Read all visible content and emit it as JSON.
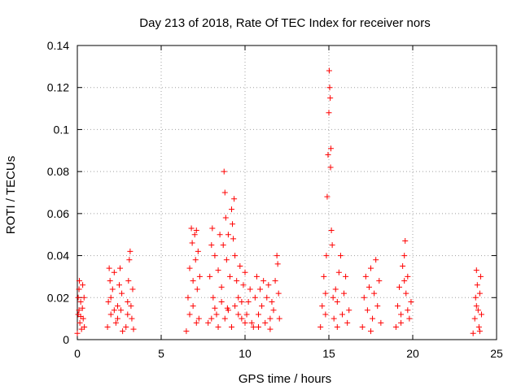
{
  "chart_data": {
    "type": "scatter",
    "title": "Day 213 of 2018, Rate Of TEC Index for receiver nors",
    "xlabel": "GPS time / hours",
    "ylabel": "ROTI / TECUs",
    "xlim": [
      0,
      25
    ],
    "ylim": [
      0,
      0.14
    ],
    "xticks": [
      0,
      5,
      10,
      15,
      20,
      25
    ],
    "xtick_labels": [
      "0",
      "5",
      "10",
      "15",
      "20",
      "25"
    ],
    "yticks": [
      0,
      0.02,
      0.04,
      0.06,
      0.08,
      0.1,
      0.12,
      0.14
    ],
    "ytick_labels": [
      "0",
      "0.02",
      "0.04",
      "0.06",
      "0.08",
      "0.1",
      "0.12",
      "0.14"
    ],
    "grid": true,
    "marker": "+",
    "series": [
      {
        "name": "ROTI",
        "color": "#ff0000",
        "points": [
          [
            0.0,
            0.003
          ],
          [
            0.05,
            0.012
          ],
          [
            0.1,
            0.024
          ],
          [
            0.12,
            0.028
          ],
          [
            0.15,
            0.008
          ],
          [
            0.2,
            0.018
          ],
          [
            0.25,
            0.005
          ],
          [
            0.3,
            0.015
          ],
          [
            0.32,
            0.026
          ],
          [
            0.35,
            0.01
          ],
          [
            0.4,
            0.02
          ],
          [
            0.42,
            0.006
          ],
          [
            0.1,
            0.014
          ],
          [
            0.2,
            0.011
          ],
          [
            0.05,
            0.02
          ],
          [
            1.8,
            0.006
          ],
          [
            1.85,
            0.018
          ],
          [
            1.9,
            0.034
          ],
          [
            1.95,
            0.028
          ],
          [
            2.0,
            0.012
          ],
          [
            2.1,
            0.024
          ],
          [
            2.2,
            0.032
          ],
          [
            2.3,
            0.008
          ],
          [
            2.4,
            0.016
          ],
          [
            2.5,
            0.026
          ],
          [
            2.55,
            0.034
          ],
          [
            2.6,
            0.014
          ],
          [
            2.65,
            0.022
          ],
          [
            2.7,
            0.004
          ],
          [
            2.0,
            0.02
          ],
          [
            2.2,
            0.014
          ],
          [
            2.4,
            0.01
          ],
          [
            2.9,
            0.006
          ],
          [
            3.0,
            0.018
          ],
          [
            3.05,
            0.028
          ],
          [
            3.1,
            0.038
          ],
          [
            3.15,
            0.042
          ],
          [
            3.2,
            0.016
          ],
          [
            3.25,
            0.01
          ],
          [
            3.3,
            0.024
          ],
          [
            3.35,
            0.005
          ],
          [
            3.0,
            0.012
          ],
          [
            6.5,
            0.004
          ],
          [
            6.6,
            0.02
          ],
          [
            6.7,
            0.034
          ],
          [
            6.8,
            0.053
          ],
          [
            6.85,
            0.046
          ],
          [
            6.9,
            0.028
          ],
          [
            7.0,
            0.05
          ],
          [
            7.05,
            0.038
          ],
          [
            7.1,
            0.052
          ],
          [
            7.15,
            0.024
          ],
          [
            7.2,
            0.042
          ],
          [
            7.25,
            0.01
          ],
          [
            7.3,
            0.03
          ],
          [
            6.7,
            0.012
          ],
          [
            6.9,
            0.016
          ],
          [
            7.1,
            0.008
          ],
          [
            7.8,
            0.008
          ],
          [
            7.9,
            0.03
          ],
          [
            8.0,
            0.045
          ],
          [
            8.05,
            0.053
          ],
          [
            8.1,
            0.02
          ],
          [
            8.2,
            0.04
          ],
          [
            8.3,
            0.012
          ],
          [
            8.4,
            0.033
          ],
          [
            8.5,
            0.05
          ],
          [
            8.6,
            0.025
          ],
          [
            8.7,
            0.045
          ],
          [
            8.75,
            0.08
          ],
          [
            8.8,
            0.07
          ],
          [
            8.85,
            0.058
          ],
          [
            8.9,
            0.038
          ],
          [
            8.95,
            0.015
          ],
          [
            9.0,
            0.05
          ],
          [
            9.1,
            0.03
          ],
          [
            9.2,
            0.062
          ],
          [
            9.25,
            0.055
          ],
          [
            9.3,
            0.048
          ],
          [
            9.35,
            0.067
          ],
          [
            9.4,
            0.04
          ],
          [
            9.5,
            0.028
          ],
          [
            9.6,
            0.02
          ],
          [
            9.7,
            0.035
          ],
          [
            9.8,
            0.01
          ],
          [
            9.9,
            0.026
          ],
          [
            10.0,
            0.032
          ],
          [
            10.1,
            0.012
          ],
          [
            10.2,
            0.018
          ],
          [
            10.3,
            0.024
          ],
          [
            10.4,
            0.008
          ],
          [
            8.0,
            0.01
          ],
          [
            8.2,
            0.015
          ],
          [
            8.4,
            0.006
          ],
          [
            8.6,
            0.018
          ],
          [
            8.8,
            0.01
          ],
          [
            9.0,
            0.014
          ],
          [
            9.2,
            0.006
          ],
          [
            9.4,
            0.016
          ],
          [
            9.6,
            0.012
          ],
          [
            9.8,
            0.018
          ],
          [
            10.0,
            0.008
          ],
          [
            10.5,
            0.006
          ],
          [
            10.6,
            0.02
          ],
          [
            10.7,
            0.03
          ],
          [
            10.8,
            0.012
          ],
          [
            10.9,
            0.024
          ],
          [
            11.0,
            0.016
          ],
          [
            11.1,
            0.028
          ],
          [
            11.2,
            0.008
          ],
          [
            11.3,
            0.02
          ],
          [
            11.4,
            0.026
          ],
          [
            11.5,
            0.01
          ],
          [
            11.6,
            0.018
          ],
          [
            11.7,
            0.014
          ],
          [
            11.8,
            0.028
          ],
          [
            11.9,
            0.04
          ],
          [
            11.95,
            0.036
          ],
          [
            12.0,
            0.022
          ],
          [
            12.05,
            0.01
          ],
          [
            10.8,
            0.006
          ],
          [
            11.5,
            0.005
          ],
          [
            14.5,
            0.006
          ],
          [
            14.6,
            0.016
          ],
          [
            14.7,
            0.03
          ],
          [
            14.8,
            0.022
          ],
          [
            14.85,
            0.04
          ],
          [
            14.9,
            0.068
          ],
          [
            14.95,
            0.088
          ],
          [
            15.0,
            0.108
          ],
          [
            15.02,
            0.128
          ],
          [
            15.05,
            0.12
          ],
          [
            15.08,
            0.115
          ],
          [
            15.1,
            0.082
          ],
          [
            15.12,
            0.091
          ],
          [
            15.15,
            0.052
          ],
          [
            15.2,
            0.045
          ],
          [
            15.25,
            0.02
          ],
          [
            15.3,
            0.01
          ],
          [
            15.4,
            0.024
          ],
          [
            15.5,
            0.018
          ],
          [
            15.6,
            0.032
          ],
          [
            15.7,
            0.04
          ],
          [
            15.8,
            0.012
          ],
          [
            15.9,
            0.022
          ],
          [
            16.0,
            0.03
          ],
          [
            16.1,
            0.008
          ],
          [
            16.2,
            0.014
          ],
          [
            14.8,
            0.012
          ],
          [
            15.5,
            0.006
          ],
          [
            17.0,
            0.006
          ],
          [
            17.1,
            0.02
          ],
          [
            17.2,
            0.03
          ],
          [
            17.3,
            0.014
          ],
          [
            17.4,
            0.025
          ],
          [
            17.5,
            0.034
          ],
          [
            17.6,
            0.01
          ],
          [
            17.7,
            0.022
          ],
          [
            17.8,
            0.038
          ],
          [
            17.9,
            0.016
          ],
          [
            18.0,
            0.028
          ],
          [
            18.1,
            0.008
          ],
          [
            17.5,
            0.004
          ],
          [
            19.0,
            0.006
          ],
          [
            19.1,
            0.016
          ],
          [
            19.2,
            0.025
          ],
          [
            19.3,
            0.012
          ],
          [
            19.4,
            0.035
          ],
          [
            19.5,
            0.04
          ],
          [
            19.55,
            0.047
          ],
          [
            19.6,
            0.022
          ],
          [
            19.7,
            0.03
          ],
          [
            19.8,
            0.01
          ],
          [
            19.9,
            0.018
          ],
          [
            19.5,
            0.028
          ],
          [
            19.3,
            0.008
          ],
          [
            19.7,
            0.014
          ],
          [
            23.6,
            0.003
          ],
          [
            23.7,
            0.01
          ],
          [
            23.75,
            0.02
          ],
          [
            23.8,
            0.033
          ],
          [
            23.85,
            0.026
          ],
          [
            23.9,
            0.014
          ],
          [
            23.95,
            0.006
          ],
          [
            24.0,
            0.022
          ],
          [
            24.05,
            0.03
          ],
          [
            24.1,
            0.012
          ],
          [
            23.8,
            0.016
          ],
          [
            24.0,
            0.004
          ]
        ]
      }
    ]
  }
}
